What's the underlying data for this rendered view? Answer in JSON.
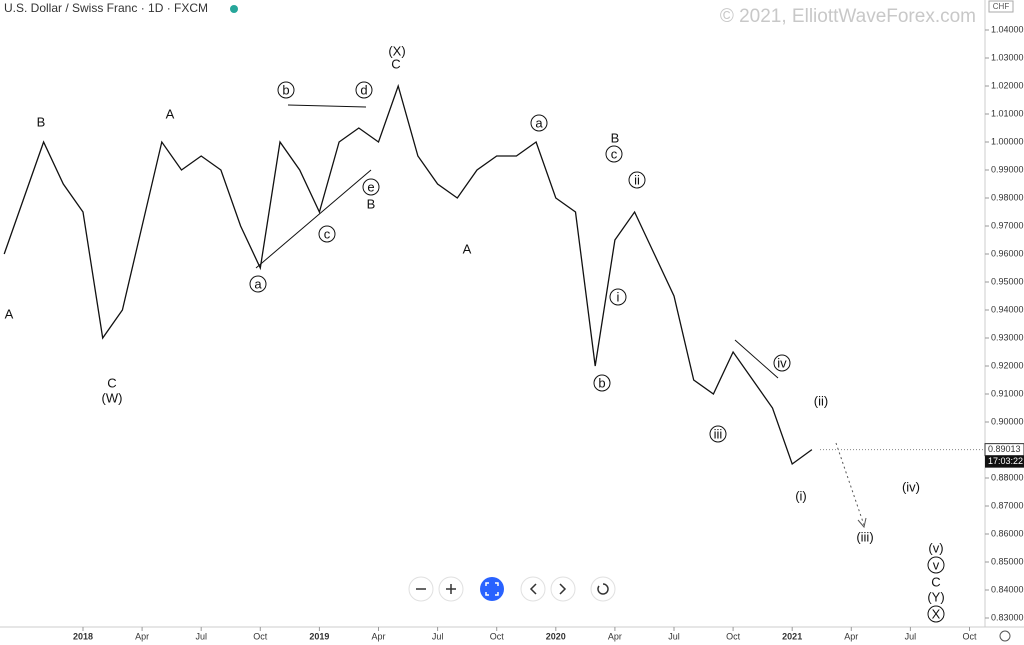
{
  "chart_data": {
    "type": "line",
    "title": "U.S. Dollar / Swiss Franc · 1D · FXCM",
    "watermark": "© 2021, ElliottWaveForex.com",
    "currency": "CHF",
    "last_price": {
      "value": 0.89013,
      "label": "0.89013"
    },
    "countdown": "17:03:22",
    "x": [
      "2017-09",
      "2017-10",
      "2017-11",
      "2017-12",
      "2018-01",
      "2018-02",
      "2018-03",
      "2018-04",
      "2018-05",
      "2018-06",
      "2018-07",
      "2018-08",
      "2018-09",
      "2018-10",
      "2018-11",
      "2018-12",
      "2019-01",
      "2019-02",
      "2019-03",
      "2019-04",
      "2019-05",
      "2019-06",
      "2019-07",
      "2019-08",
      "2019-09",
      "2019-10",
      "2019-11",
      "2019-12",
      "2020-01",
      "2020-02",
      "2020-03",
      "2020-04",
      "2020-05",
      "2020-06",
      "2020-07",
      "2020-08",
      "2020-09",
      "2020-10",
      "2020-11",
      "2020-12",
      "2021-01",
      "2021-02"
    ],
    "series": [
      {
        "name": "USD/CHF",
        "color": "#111111",
        "values": [
          0.96,
          0.98,
          1.0,
          0.985,
          0.975,
          0.93,
          0.94,
          0.97,
          1.0,
          0.99,
          0.995,
          0.99,
          0.97,
          0.955,
          1.0,
          0.99,
          0.975,
          1.0,
          1.005,
          1.0,
          1.02,
          0.995,
          0.985,
          0.98,
          0.99,
          0.995,
          0.995,
          1.0,
          0.98,
          0.975,
          0.92,
          0.965,
          0.975,
          0.96,
          0.945,
          0.915,
          0.91,
          0.925,
          0.915,
          0.905,
          0.885,
          0.89013
        ]
      }
    ],
    "ylim": [
      0.83,
      1.04
    ],
    "yticks": [
      {
        "value": 0.83,
        "label": "0.83000"
      },
      {
        "value": 0.84,
        "label": "0.84000"
      },
      {
        "value": 0.85,
        "label": "0.85000"
      },
      {
        "value": 0.86,
        "label": "0.86000"
      },
      {
        "value": 0.87,
        "label": "0.87000"
      },
      {
        "value": 0.88,
        "label": "0.88000"
      },
      {
        "value": 0.89,
        "label": "0.89000"
      },
      {
        "value": 0.9,
        "label": "0.90000"
      },
      {
        "value": 0.91,
        "label": "0.91000"
      },
      {
        "value": 0.92,
        "label": "0.92000"
      },
      {
        "value": 0.93,
        "label": "0.93000"
      },
      {
        "value": 0.94,
        "label": "0.94000"
      },
      {
        "value": 0.95,
        "label": "0.95000"
      },
      {
        "value": 0.96,
        "label": "0.96000"
      },
      {
        "value": 0.97,
        "label": "0.97000"
      },
      {
        "value": 0.98,
        "label": "0.98000"
      },
      {
        "value": 0.99,
        "label": "0.99000"
      },
      {
        "value": 1.0,
        "label": "1.00000"
      },
      {
        "value": 1.01,
        "label": "1.01000"
      },
      {
        "value": 1.02,
        "label": "1.02000"
      },
      {
        "value": 1.03,
        "label": "1.03000"
      },
      {
        "value": 1.04,
        "label": "1.04000"
      }
    ],
    "xticks": [
      {
        "value": "2018-01",
        "label": "2018"
      },
      {
        "value": "2018-04",
        "label": "Apr"
      },
      {
        "value": "2018-07",
        "label": "Jul"
      },
      {
        "value": "2018-10",
        "label": "Oct"
      },
      {
        "value": "2019-01",
        "label": "2019"
      },
      {
        "value": "2019-04",
        "label": "Apr"
      },
      {
        "value": "2019-07",
        "label": "Jul"
      },
      {
        "value": "2019-10",
        "label": "Oct"
      },
      {
        "value": "2020-01",
        "label": "2020"
      },
      {
        "value": "2020-04",
        "label": "Apr"
      },
      {
        "value": "2020-07",
        "label": "Jul"
      },
      {
        "value": "2020-10",
        "label": "Oct"
      },
      {
        "value": "2021-01",
        "label": "2021"
      },
      {
        "value": "2021-04",
        "label": "Apr"
      },
      {
        "value": "2021-07",
        "label": "Jul"
      },
      {
        "value": "2021-10",
        "label": "Oct"
      }
    ],
    "annotations": [
      "A",
      "B",
      "C",
      "(W)",
      "A",
      "b",
      "d",
      "(X)",
      "C",
      "e",
      "B",
      "c",
      "a",
      "A",
      "a",
      "B",
      "c",
      "ii",
      "i",
      "b",
      "iv",
      "iii",
      "(ii)",
      "(i)",
      "(iv)",
      "(iii)",
      "(v)",
      "v",
      "C",
      "(Y)",
      "X"
    ]
  }
}
